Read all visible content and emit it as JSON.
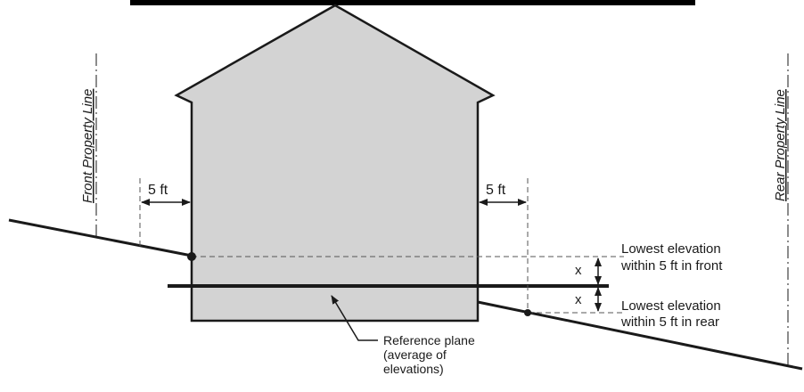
{
  "labels": {
    "front_property_line": "Front Property Line",
    "rear_property_line": "Rear Property Line",
    "front_setback": "5 ft",
    "rear_setback": "5 ft",
    "front_marker": "x",
    "rear_marker": "x",
    "front_elevation_line1": "Lowest elevation",
    "front_elevation_line2": "within 5 ft in front",
    "rear_elevation_line1": "Lowest elevation",
    "rear_elevation_line2": "within 5 ft in rear",
    "reference_plane_line1": "Reference plane",
    "reference_plane_line2": "(average of",
    "reference_plane_line3": "elevations)"
  },
  "colors": {
    "building_fill": "#d3d3d3",
    "stroke": "#1a1a1a"
  }
}
